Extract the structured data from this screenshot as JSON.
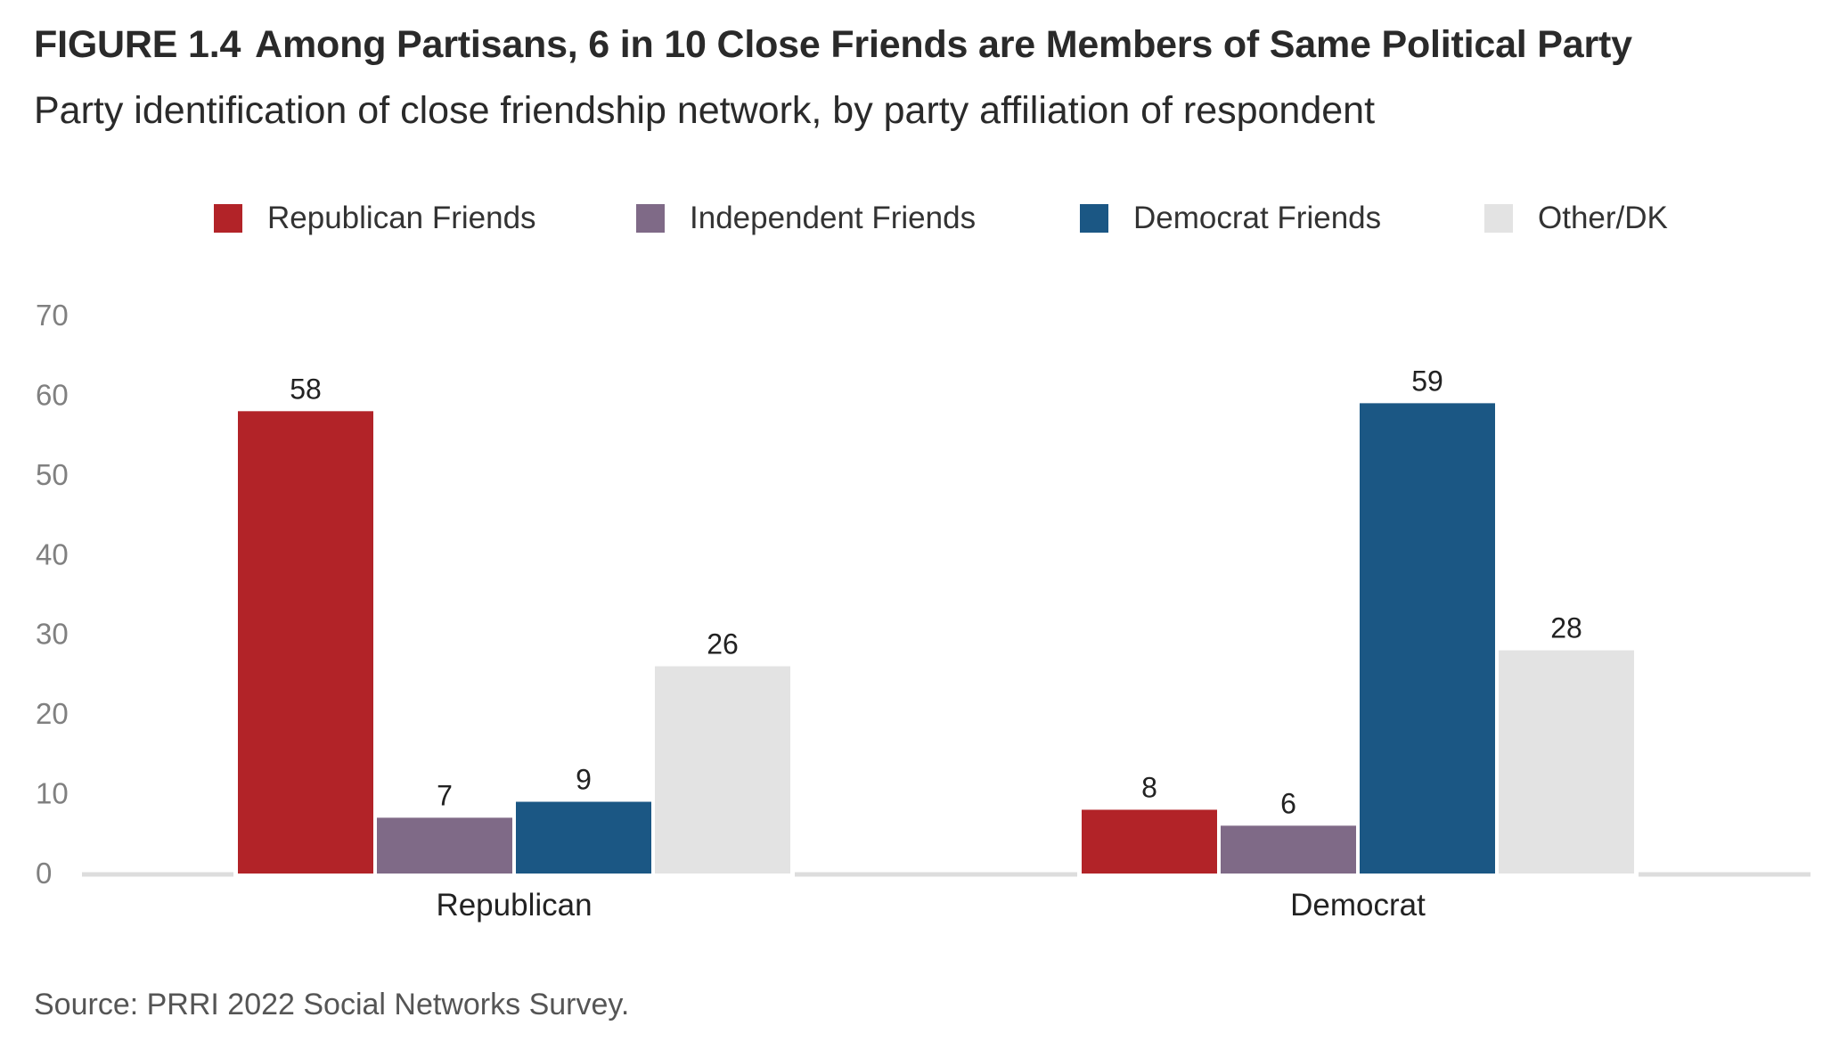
{
  "header": {
    "figure_label": "FIGURE 1.4",
    "title": "Among Partisans, 6 in 10 Close Friends are Members of Same Political Party",
    "subtitle": "Party identification of close friendship network, by party affiliation of respondent"
  },
  "source": "Source: PRRI 2022 Social Networks Survey.",
  "chart_data": {
    "type": "bar",
    "title": "Among Partisans, 6 in 10 Close Friends are Members of Same Political Party",
    "subtitle": "Party identification of close friendship network, by party affiliation of respondent",
    "categories": [
      "Republican",
      "Democrat"
    ],
    "series": [
      {
        "name": "Republican Friends",
        "color": "#b22328",
        "values": [
          58,
          8
        ]
      },
      {
        "name": "Independent Friends",
        "color": "#7f6a87",
        "values": [
          7,
          6
        ]
      },
      {
        "name": "Democrat Friends",
        "color": "#1b5784",
        "values": [
          9,
          59
        ]
      },
      {
        "name": "Other/DK",
        "color": "#e3e3e3",
        "values": [
          26,
          28
        ]
      }
    ],
    "ylim": [
      0,
      70
    ],
    "yticks": [
      0,
      10,
      20,
      30,
      40,
      50,
      60,
      70
    ],
    "xlabel": "",
    "ylabel": "",
    "grid": false,
    "legend": "top",
    "data_labels": true
  }
}
